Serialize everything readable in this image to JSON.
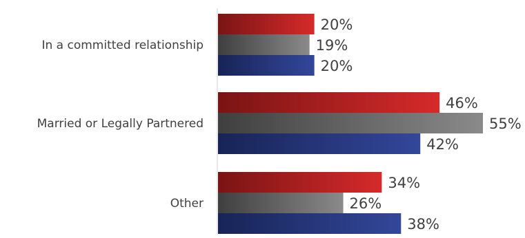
{
  "chart_data": {
    "type": "bar",
    "orientation": "horizontal",
    "categories": [
      "In a committed relationship",
      "Married or Legally Partnered",
      "Other"
    ],
    "series": [
      {
        "values": [
          20,
          46,
          34
        ],
        "value_labels": [
          "20%",
          "46%",
          "34%"
        ],
        "color": "#d62a2a",
        "color_dark": "#7a1414"
      },
      {
        "values": [
          19,
          55,
          26
        ],
        "value_labels": [
          "19%",
          "55%",
          "26%"
        ],
        "color": "#8a8a8a",
        "color_dark": "#3f3f3f"
      },
      {
        "values": [
          20,
          42,
          38
        ],
        "value_labels": [
          "20%",
          "42%",
          "38%"
        ],
        "color": "#33479a",
        "color_dark": "#172456"
      }
    ],
    "xlim": [
      0,
      55
    ],
    "grid": false,
    "legend": "none"
  }
}
